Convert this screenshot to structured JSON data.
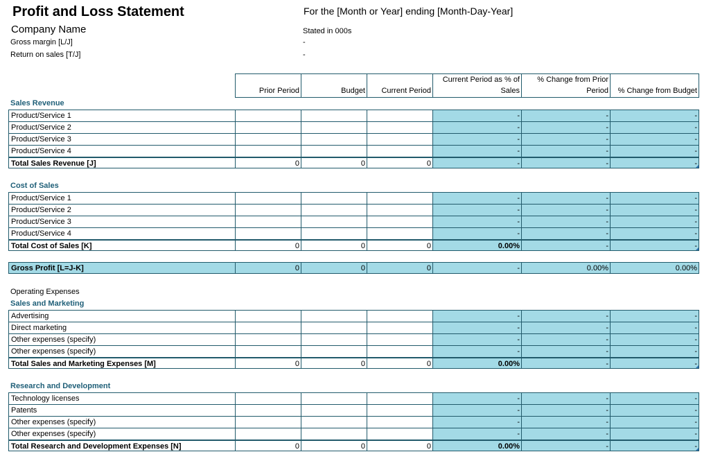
{
  "header": {
    "title": "Profit and Loss Statement",
    "period": "For the [Month or Year] ending [Month-Day-Year]",
    "company": "Company Name",
    "stated": "Stated in 000s",
    "gross_margin_label": "Gross margin  [L/J]",
    "gross_margin_value": "-",
    "return_on_sales_label": "Return on sales  [T/J]",
    "return_on_sales_value": "-"
  },
  "columns": {
    "prior_period": "Prior Period",
    "budget": "Budget",
    "current_period": "Current Period",
    "pct_of_sales_line1": "Current Period as % of",
    "pct_of_sales_line2": "Sales",
    "change_prior_line1": "% Change from Prior",
    "change_prior_line2": "Period",
    "change_budget": "% Change from Budget"
  },
  "sales_revenue": {
    "title": "Sales Revenue",
    "items": [
      {
        "label": "Product/Service 1",
        "pct": "-",
        "chg_prior": "-",
        "chg_budget": "-"
      },
      {
        "label": "Product/Service 2",
        "pct": "-",
        "chg_prior": "-",
        "chg_budget": "-"
      },
      {
        "label": "Product/Service 3",
        "pct": "-",
        "chg_prior": "-",
        "chg_budget": "-"
      },
      {
        "label": "Product/Service 4",
        "pct": "-",
        "chg_prior": "-",
        "chg_budget": "-"
      }
    ],
    "total": {
      "label": "Total Sales Revenue  [J]",
      "prior": "0",
      "budget": "0",
      "current": "0",
      "pct": "-",
      "chg_prior": "-",
      "chg_budget": "-"
    }
  },
  "cost_of_sales": {
    "title": "Cost of Sales",
    "items": [
      {
        "label": "Product/Service 1",
        "pct": "-",
        "chg_prior": "-",
        "chg_budget": "-"
      },
      {
        "label": "Product/Service 2",
        "pct": "-",
        "chg_prior": "-",
        "chg_budget": "-"
      },
      {
        "label": "Product/Service 3",
        "pct": "-",
        "chg_prior": "-",
        "chg_budget": "-"
      },
      {
        "label": "Product/Service 4",
        "pct": "-",
        "chg_prior": "-",
        "chg_budget": "-"
      }
    ],
    "total": {
      "label": "Total Cost of Sales  [K]",
      "prior": "0",
      "budget": "0",
      "current": "0",
      "pct": "0.00%",
      "chg_prior": "-",
      "chg_budget": "-"
    }
  },
  "gross_profit": {
    "label": "Gross Profit  [L=J-K]",
    "prior": "0",
    "budget": "0",
    "current": "0",
    "pct": "-",
    "chg_prior": "0.00%",
    "chg_budget": "0.00%"
  },
  "operating_expenses": {
    "title": "Operating Expenses"
  },
  "sales_marketing": {
    "title": "Sales and Marketing",
    "items": [
      {
        "label": "Advertising",
        "pct": "-",
        "chg_prior": "-",
        "chg_budget": "-"
      },
      {
        "label": "Direct marketing",
        "pct": "-",
        "chg_prior": "-",
        "chg_budget": "-"
      },
      {
        "label": "Other expenses (specify)",
        "pct": "-",
        "chg_prior": "-",
        "chg_budget": "-"
      },
      {
        "label": "Other expenses (specify)",
        "pct": "-",
        "chg_prior": "-",
        "chg_budget": "-"
      }
    ],
    "total": {
      "label": "Total Sales and Marketing Expenses  [M]",
      "prior": "0",
      "budget": "0",
      "current": "0",
      "pct": "0.00%",
      "chg_prior": "-",
      "chg_budget": "-"
    }
  },
  "research_development": {
    "title": "Research and Development",
    "items": [
      {
        "label": "Technology licenses",
        "pct": "-",
        "chg_prior": "-",
        "chg_budget": "-"
      },
      {
        "label": "Patents",
        "pct": "-",
        "chg_prior": "-",
        "chg_budget": "-"
      },
      {
        "label": "Other expenses (specify)",
        "pct": "-",
        "chg_prior": "-",
        "chg_budget": "-"
      },
      {
        "label": "Other expenses (specify)",
        "pct": "-",
        "chg_prior": "-",
        "chg_budget": "-"
      }
    ],
    "total": {
      "label": "Total Research and Development Expenses  [N]",
      "prior": "0",
      "budget": "0",
      "current": "0",
      "pct": "0.00%",
      "chg_prior": "-",
      "chg_budget": "-"
    }
  },
  "colors": {
    "accent_fill": "#a3dae6",
    "border": "#215a6b",
    "section_title": "#1f5f78"
  }
}
